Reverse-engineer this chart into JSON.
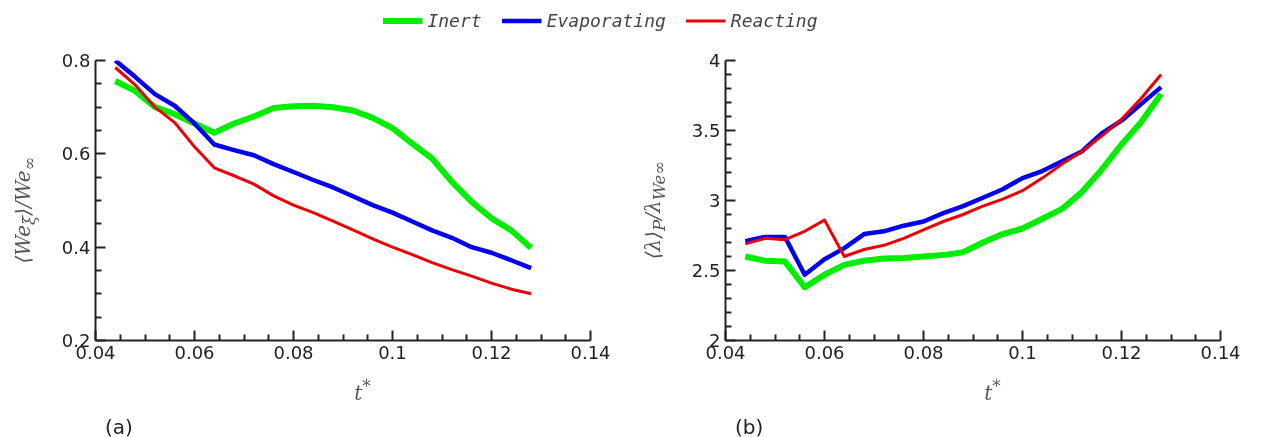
{
  "chart_data": [
    {
      "type": "line",
      "xlabel": "t$^{*}$",
      "ylabel": "⟨We$_{ξ}$⟩/We$_{∞}$",
      "annotations": [
        "(a)"
      ],
      "x": [
        0.044,
        0.048,
        0.052,
        0.056,
        0.06,
        0.064,
        0.068,
        0.072,
        0.076,
        0.08,
        0.084,
        0.088,
        0.092,
        0.096,
        0.1,
        0.104,
        0.108,
        0.112,
        0.116,
        0.12,
        0.124,
        0.128
      ],
      "xlim": [
        0.04,
        0.14
      ],
      "xticks": [
        0.04,
        0.06,
        0.08,
        0.1,
        0.12,
        0.14
      ],
      "ylim": [
        0.2,
        0.8
      ],
      "yticks": [
        0.2,
        0.4,
        0.6,
        0.8
      ],
      "grid": false,
      "legend": "top",
      "line_style": "solid",
      "series": [
        {
          "name": "Inert",
          "color": "#00ee00",
          "values": [
            0.756,
            0.735,
            0.7,
            0.685,
            0.665,
            0.645,
            0.665,
            0.68,
            0.698,
            0.702,
            0.703,
            0.7,
            0.693,
            0.677,
            0.655,
            0.622,
            0.59,
            0.54,
            0.497,
            0.462,
            0.436,
            0.398
          ]
        },
        {
          "name": "Evaporating",
          "color": "#0000ee",
          "values": [
            0.8,
            0.765,
            0.728,
            0.703,
            0.665,
            0.62,
            0.608,
            0.597,
            0.578,
            0.561,
            0.544,
            0.528,
            0.509,
            0.49,
            0.474,
            0.455,
            0.436,
            0.42,
            0.4,
            0.388,
            0.372,
            0.355
          ]
        },
        {
          "name": "Reacting",
          "color": "#ee0000",
          "values": [
            0.785,
            0.748,
            0.7,
            0.667,
            0.615,
            0.57,
            0.553,
            0.535,
            0.51,
            0.49,
            0.474,
            0.456,
            0.437,
            0.418,
            0.4,
            0.384,
            0.367,
            0.352,
            0.338,
            0.323,
            0.31,
            0.3
          ]
        }
      ]
    },
    {
      "type": "line",
      "xlabel": "t$^{*}$",
      "ylabel": "⟨λ⟩$_{P}$/λ$_{We∞}$",
      "annotations": [
        "(b)"
      ],
      "x": [
        0.044,
        0.048,
        0.052,
        0.056,
        0.06,
        0.064,
        0.068,
        0.072,
        0.076,
        0.08,
        0.084,
        0.088,
        0.092,
        0.096,
        0.1,
        0.104,
        0.108,
        0.112,
        0.116,
        0.12,
        0.124,
        0.128
      ],
      "xlim": [
        0.04,
        0.14
      ],
      "xticks": [
        0.04,
        0.06,
        0.08,
        0.1,
        0.12,
        0.14
      ],
      "ylim": [
        2,
        4
      ],
      "yticks": [
        2,
        2.5,
        3,
        3.5,
        4
      ],
      "grid": false,
      "line_style": "solid",
      "series": [
        {
          "color": "#00ee00",
          "values": [
            2.6,
            2.57,
            2.565,
            2.38,
            2.47,
            2.54,
            2.57,
            2.585,
            2.59,
            2.6,
            2.61,
            2.63,
            2.7,
            2.76,
            2.8,
            2.87,
            2.94,
            3.06,
            3.22,
            3.4,
            3.56,
            3.76
          ]
        },
        {
          "color": "#0000ee",
          "values": [
            2.71,
            2.74,
            2.74,
            2.47,
            2.58,
            2.66,
            2.76,
            2.78,
            2.82,
            2.85,
            2.91,
            2.96,
            3.02,
            3.08,
            3.16,
            3.21,
            3.28,
            3.35,
            3.48,
            3.57,
            3.69,
            3.81
          ]
        },
        {
          "color": "#ee0000",
          "values": [
            2.69,
            2.73,
            2.72,
            2.78,
            2.86,
            2.6,
            2.65,
            2.68,
            2.73,
            2.79,
            2.85,
            2.9,
            2.96,
            3.01,
            3.07,
            3.16,
            3.26,
            3.35,
            3.46,
            3.58,
            3.73,
            3.9
          ]
        }
      ]
    }
  ]
}
